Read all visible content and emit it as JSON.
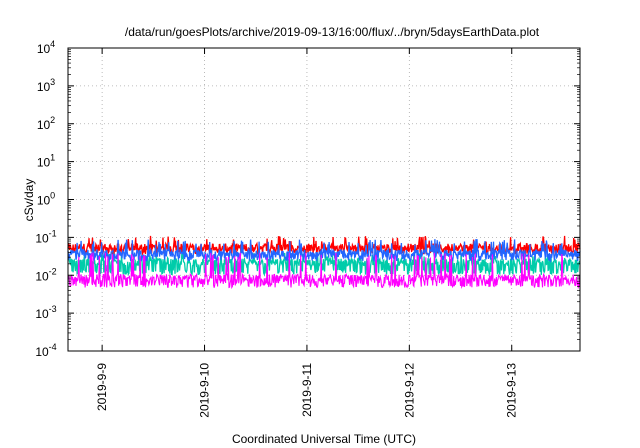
{
  "chart_data": {
    "type": "line",
    "title": "/data/run/goesPlots/archive/2019-09-13/16:00/flux/../bryn/5daysEarthData.plot",
    "xlabel": "Coordinated Universal Time (UTC)",
    "ylabel": "cSv/day",
    "yscale": "log",
    "ylim": [
      0.0001,
      10000
    ],
    "y_ticks": [
      {
        "value": 0.0001,
        "base": "10",
        "exp": "-4"
      },
      {
        "value": 0.001,
        "base": "10",
        "exp": "-3"
      },
      {
        "value": 0.01,
        "base": "10",
        "exp": "-2"
      },
      {
        "value": 0.1,
        "base": "10",
        "exp": "-1"
      },
      {
        "value": 1,
        "base": "10",
        "exp": "0"
      },
      {
        "value": 10,
        "base": "10",
        "exp": "1"
      },
      {
        "value": 100,
        "base": "10",
        "exp": "2"
      },
      {
        "value": 1000,
        "base": "10",
        "exp": "3"
      },
      {
        "value": 10000,
        "base": "10",
        "exp": "4"
      }
    ],
    "xlim": [
      "2019-09-08T16:00",
      "2019-09-13T16:00"
    ],
    "x_ticks": [
      {
        "date": "2019-09-09T00:00",
        "label": "2019-9-9"
      },
      {
        "date": "2019-09-10T00:00",
        "label": "2019-9-10"
      },
      {
        "date": "2019-09-11T00:00",
        "label": "2019-9-11"
      },
      {
        "date": "2019-09-12T00:00",
        "label": "2019-9-12"
      },
      {
        "date": "2019-09-13T00:00",
        "label": "2019-9-13"
      }
    ],
    "grid": true,
    "series": [
      {
        "color": "#ff0000",
        "base": 0.055,
        "low": 0.042,
        "spike": 0.11
      },
      {
        "color": "#00ccaa",
        "base": 0.022,
        "low": 0.012,
        "spike": 0.04
      },
      {
        "color": "#2266ff",
        "base": 0.038,
        "low": 0.028,
        "spike": 0.09
      },
      {
        "color": "#ff00ff",
        "base": 0.0085,
        "low": 0.0055,
        "spike": 0.04
      }
    ]
  }
}
